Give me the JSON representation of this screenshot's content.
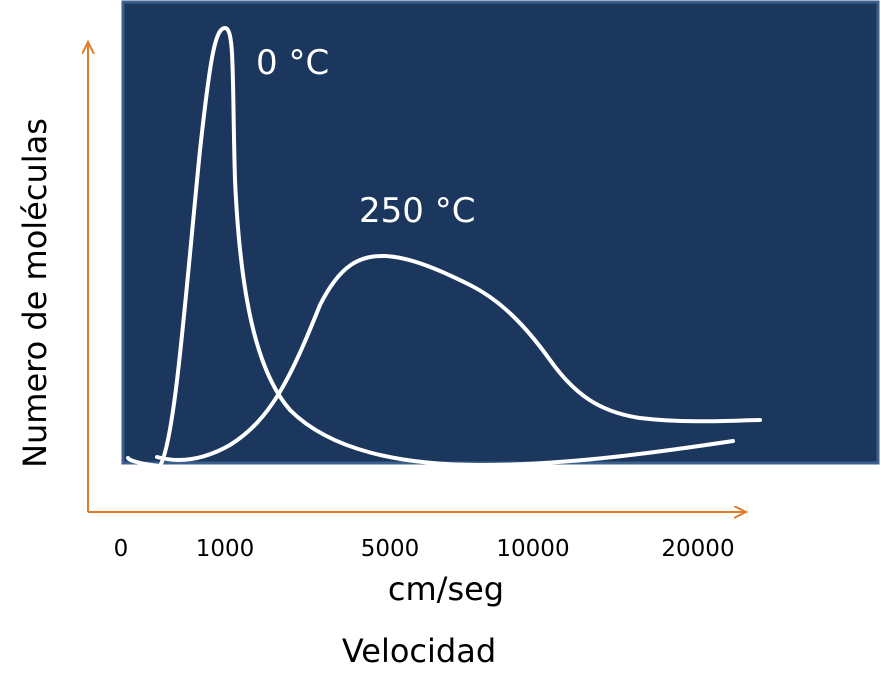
{
  "chart_data": {
    "type": "line",
    "xlabel": "cm/seg",
    "xlabel_secondary": "Velocidad",
    "ylabel": "Numero de moléculas",
    "x_ticks": [
      "0",
      "1000",
      "5000",
      "10000",
      "20000"
    ],
    "grid": false,
    "legend": "none",
    "series": [
      {
        "name": "0 °C",
        "peak_x": 1000,
        "relative_peak_height": 1.0
      },
      {
        "name": "250 °C",
        "peak_x": 5000,
        "relative_peak_height": 0.47
      }
    ]
  },
  "colors": {
    "plot_background": "#1b375d",
    "plot_border": "#3c5f8c",
    "axis": "#e07b2a",
    "curve": "#ffffff"
  }
}
